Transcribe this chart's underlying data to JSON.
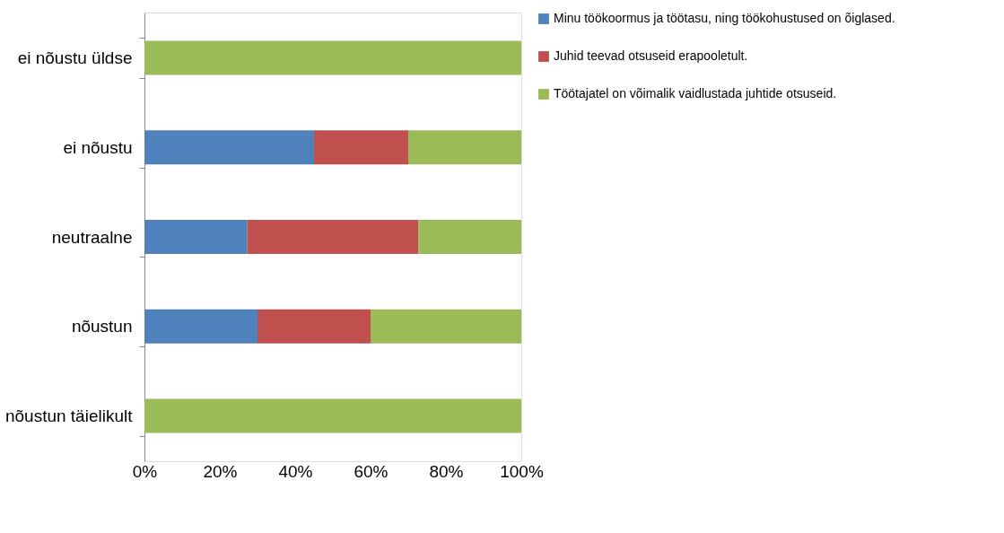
{
  "chart_data": {
    "type": "bar",
    "orientation": "horizontal",
    "stacked": true,
    "categories": [
      "ei nõustu üldse",
      "ei nõustu",
      "neutraalne",
      "nõustun",
      "nõustun täielikult"
    ],
    "series": [
      {
        "name": "Minu töökoormus ja töötasu, ning töökohustused on õiglased.",
        "color": "#4f81bd",
        "values": [
          0,
          45,
          27.3,
          30,
          0
        ]
      },
      {
        "name": "Juhid teevad otsuseid erapooletult.",
        "color": "#c0504d",
        "values": [
          0,
          25,
          45.4,
          30,
          0
        ]
      },
      {
        "name": "Töötajatel on võimalik vaidlustada juhtide otsuseid.",
        "color": "#9bbb59",
        "values": [
          100,
          30,
          27.3,
          40,
          100
        ]
      }
    ],
    "xlim": [
      0,
      100
    ],
    "xticks": [
      {
        "value": 0,
        "label": "0%"
      },
      {
        "value": 20,
        "label": "20%"
      },
      {
        "value": 40,
        "label": "40%"
      },
      {
        "value": 60,
        "label": "60%"
      },
      {
        "value": 80,
        "label": "80%"
      },
      {
        "value": 100,
        "label": "100%"
      }
    ],
    "grid": false,
    "legend": "right"
  }
}
